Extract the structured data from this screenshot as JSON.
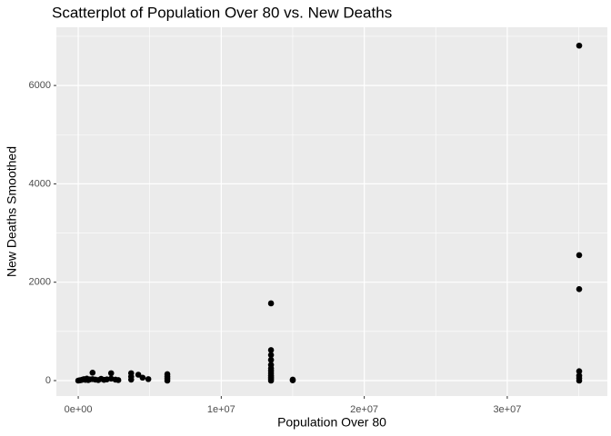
{
  "chart_data": {
    "type": "scatter",
    "title": "Scatterplot of Population Over 80 vs. New Deaths",
    "x_label": "Population Over 80",
    "y_label": "New Deaths Smoothed",
    "x": [
      0,
      100000,
      200000,
      300000,
      400000,
      500000,
      600000,
      700000,
      800000,
      1000000,
      1000000,
      1200000,
      1400000,
      1600000,
      1800000,
      2000000,
      2300000,
      2300000,
      2600000,
      2800000,
      3700000,
      3700000,
      3700000,
      4200000,
      4500000,
      4900000,
      6230000,
      6230000,
      6230000,
      6230000,
      13480000,
      13480000,
      13480000,
      13480000,
      13480000,
      13480000,
      13480000,
      13480000,
      13480000,
      13480000,
      13480000,
      13480000,
      15000000,
      15000000,
      35030000,
      35030000,
      35030000,
      35030000,
      35030000,
      35030000,
      35030000
    ],
    "values": [
      0,
      5,
      10,
      20,
      30,
      15,
      40,
      10,
      25,
      160,
      30,
      20,
      10,
      35,
      15,
      25,
      150,
      40,
      20,
      10,
      150,
      80,
      20,
      120,
      60,
      30,
      130,
      80,
      40,
      0,
      1570,
      620,
      520,
      420,
      320,
      250,
      200,
      150,
      100,
      60,
      30,
      0,
      20,
      5,
      6810,
      2550,
      1860,
      190,
      100,
      50,
      0
    ],
    "color": "#000000",
    "xlim": [
      -1530000,
      37000000
    ],
    "ylim": [
      -314,
      7184
    ],
    "xticks": [
      {
        "value": 0,
        "label": "0e+00"
      },
      {
        "value": 10000000,
        "label": "1e+07"
      },
      {
        "value": 20000000,
        "label": "2e+07"
      },
      {
        "value": 30000000,
        "label": "3e+07"
      }
    ],
    "yticks": [
      0,
      2000,
      4000,
      6000
    ],
    "x_minor": [
      5000000,
      15000000,
      25000000,
      35000000
    ],
    "y_minor": [
      1000,
      3000,
      5000,
      7000
    ],
    "grid": true,
    "background": "#ebebeb"
  }
}
